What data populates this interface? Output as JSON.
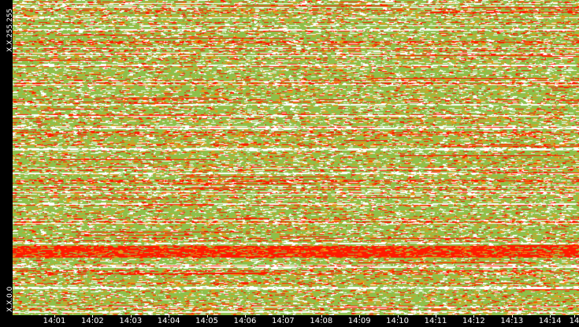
{
  "chart_data": {
    "type": "heatmap",
    "title": "",
    "xlabel": "",
    "ylabel": "",
    "y_tick_labels": {
      "top": "X.X.255.255",
      "bottom": "X.X.0.0"
    },
    "x_ticks": [
      "14:01",
      "14:02",
      "14:03",
      "14:04",
      "14:05",
      "14:06",
      "14:07",
      "14:08",
      "14:09",
      "14:10",
      "14:11",
      "14:12",
      "14:13",
      "14:14",
      "14"
    ],
    "color_levels": [
      {
        "level": "none",
        "color": "#ffffff"
      },
      {
        "level": "low",
        "color": "#8dc04a"
      },
      {
        "level": "medium",
        "color": "#e69a19"
      },
      {
        "level": "high",
        "color": "#ff1a00"
      }
    ],
    "grid": false,
    "legend": "none"
  }
}
